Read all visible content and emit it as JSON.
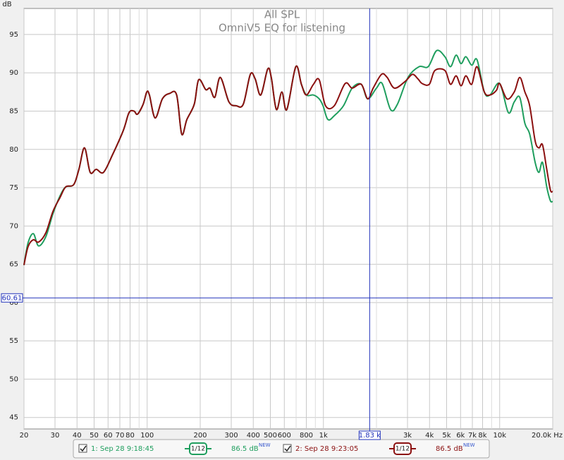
{
  "chart_data": {
    "type": "line",
    "title": "All SPL",
    "subtitle": "OmniV5 EQ for listening",
    "y_label": "dB",
    "xlog": true,
    "xlim": [
      20,
      20000
    ],
    "ylim": [
      43.5,
      98.4
    ],
    "grid": true,
    "xticks": [
      20,
      30,
      40,
      50,
      60,
      70,
      80,
      100,
      200,
      300,
      400,
      500,
      600,
      800,
      {
        "value": 1000,
        "label": "1k"
      },
      {
        "value": 3000,
        "label": "3k"
      },
      {
        "value": 4000,
        "label": "4k"
      },
      {
        "value": 5000,
        "label": "5k"
      },
      {
        "value": 6000,
        "label": "6k"
      },
      {
        "value": 7000,
        "label": "7k"
      },
      {
        "value": 8000,
        "label": "8k"
      },
      {
        "value": 10000,
        "label": "10k"
      },
      {
        "value": 20000,
        "label": "20.0k Hz"
      }
    ],
    "xminor": [
      90,
      700,
      900,
      2000,
      9000
    ],
    "yticks": [
      45,
      50,
      55,
      60,
      65,
      70,
      75,
      80,
      85,
      90,
      95
    ],
    "cursor": {
      "x": {
        "value": 1830,
        "label": "1.83 k"
      },
      "y": 60.61
    },
    "series": [
      {
        "name": "1: Sep 28 9:18:45",
        "color": "#1f9e5e",
        "smoothing": "1/12",
        "level": "86.5 dB",
        "badge": "NEW",
        "x": [
          20,
          21.1,
          22.6,
          24.2,
          26.6,
          29.2,
          32,
          34.5,
          38.3,
          41,
          44.1,
          47.5,
          51.4,
          56.5,
          63.6,
          73.3,
          78.9,
          84.2,
          88.1,
          94.9,
          99.5,
          103,
          111,
          122,
          134,
          147,
          157,
          168,
          185,
          196,
          215,
          227,
          242,
          260,
          291,
          320,
          351,
          385,
          410,
          441,
          483,
          506,
          541,
          581,
          620,
          697,
          750,
          800,
          878,
          946,
          995,
          1060,
          1153,
          1300,
          1456,
          1640,
          1784,
          2000,
          2155,
          2405,
          2630,
          3020,
          3490,
          3930,
          4390,
          4890,
          5260,
          5660,
          6040,
          6430,
          6940,
          7440,
          8180,
          8810,
          10000,
          11200,
          12100,
          13000,
          13900,
          14800,
          15900,
          16700,
          17500,
          18500,
          19400,
          20000
        ],
        "values": [
          64.9,
          67.8,
          69.0,
          67.4,
          68.6,
          71.6,
          73.9,
          75.1,
          75.4,
          77.4,
          80.2,
          77.0,
          77.4,
          77.0,
          79.3,
          82.5,
          84.8,
          85.0,
          84.6,
          85.9,
          87.5,
          87.1,
          84.1,
          86.6,
          87.3,
          87.1,
          82.0,
          83.9,
          85.9,
          89.1,
          87.8,
          88.0,
          86.8,
          89.4,
          86.2,
          85.7,
          85.9,
          89.8,
          89.2,
          87.1,
          90.5,
          89.4,
          85.2,
          87.5,
          85.2,
          90.8,
          88.5,
          87.1,
          87.1,
          86.6,
          85.7,
          83.9,
          84.4,
          85.7,
          88.0,
          88.5,
          86.6,
          88.0,
          88.6,
          85.2,
          85.9,
          89.4,
          90.8,
          90.8,
          92.9,
          92.1,
          90.8,
          92.3,
          91.2,
          92.1,
          91.0,
          91.7,
          87.5,
          87.1,
          88.6,
          84.8,
          86.2,
          86.8,
          83.4,
          82.0,
          78.3,
          77.0,
          78.3,
          75.1,
          73.3,
          73.2
        ]
      },
      {
        "name": "2: Sep 28 9:23:05",
        "color": "#8b1010",
        "smoothing": "1/12",
        "level": "86.5 dB",
        "badge": "NEW",
        "x": [
          20,
          21.1,
          22.6,
          24.2,
          26.6,
          29.2,
          32,
          34.5,
          38.3,
          41,
          44.1,
          47.5,
          51.4,
          56.5,
          63.6,
          73.3,
          78.9,
          84.2,
          88.1,
          94.9,
          99.5,
          103,
          111,
          122,
          134,
          147,
          157,
          168,
          185,
          196,
          215,
          227,
          242,
          260,
          291,
          320,
          351,
          385,
          410,
          441,
          483,
          506,
          541,
          581,
          620,
          697,
          750,
          800,
          878,
          946,
          1028,
          1153,
          1328,
          1456,
          1640,
          1784,
          1916,
          2137,
          2299,
          2530,
          2917,
          3200,
          3440,
          3630,
          3990,
          4290,
          4890,
          5260,
          5660,
          6040,
          6430,
          6940,
          7440,
          8180,
          8810,
          9580,
          10000,
          11000,
          12100,
          13000,
          13900,
          14800,
          15900,
          16700,
          17500,
          18500,
          19400,
          20000
        ],
        "values": [
          64.9,
          67.3,
          68.2,
          67.9,
          69.1,
          71.9,
          73.7,
          75.1,
          75.4,
          77.4,
          80.2,
          77.0,
          77.4,
          77.0,
          79.3,
          82.5,
          84.8,
          85.0,
          84.6,
          85.9,
          87.5,
          87.1,
          84.1,
          86.6,
          87.3,
          87.1,
          82.0,
          83.9,
          85.9,
          89.1,
          87.8,
          88.0,
          86.8,
          89.4,
          86.2,
          85.7,
          85.9,
          89.8,
          89.2,
          87.1,
          90.5,
          89.4,
          85.2,
          87.5,
          85.2,
          90.8,
          88.5,
          87.1,
          88.5,
          89.1,
          85.7,
          85.7,
          88.6,
          88.0,
          88.5,
          86.6,
          88.0,
          89.8,
          89.4,
          88.0,
          88.9,
          89.8,
          89.2,
          88.6,
          88.5,
          90.3,
          90.3,
          88.5,
          89.6,
          88.3,
          89.6,
          88.5,
          90.8,
          87.5,
          87.1,
          87.7,
          88.6,
          86.6,
          87.5,
          89.4,
          87.5,
          85.7,
          81.1,
          80.2,
          80.6,
          77.4,
          74.7,
          74.5
        ]
      }
    ]
  }
}
